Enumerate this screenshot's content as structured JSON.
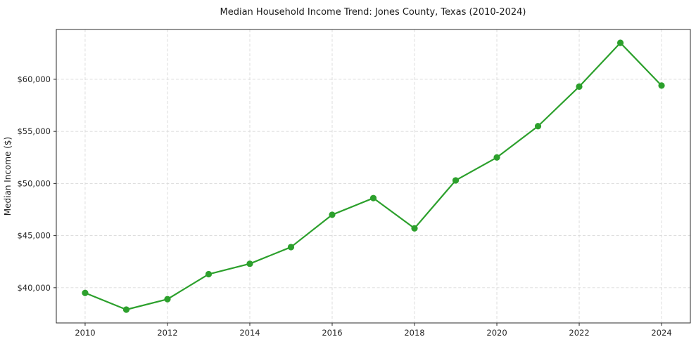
{
  "chart_data": {
    "type": "line",
    "title": "Median Household Income Trend: Jones County, Texas (2010-2024)",
    "xlabel": "",
    "ylabel": "Median Income ($)",
    "x": [
      2010,
      2011,
      2012,
      2013,
      2014,
      2015,
      2016,
      2017,
      2018,
      2019,
      2020,
      2021,
      2022,
      2023,
      2024
    ],
    "values": [
      39500,
      37900,
      38900,
      41300,
      42300,
      43900,
      47000,
      48600,
      45700,
      50300,
      52500,
      55500,
      59300,
      63500,
      59400
    ],
    "xticks": [
      2010,
      2012,
      2014,
      2016,
      2018,
      2020,
      2022,
      2024
    ],
    "xtick_labels": [
      "2010",
      "2012",
      "2014",
      "2016",
      "2018",
      "2020",
      "2022",
      "2024"
    ],
    "yticks": [
      40000,
      45000,
      50000,
      55000,
      60000
    ],
    "ytick_labels": [
      "$40,000",
      "$45,000",
      "$50,000",
      "$55,000",
      "$60,000"
    ],
    "xlim": [
      2009.3,
      2024.7
    ],
    "ylim": [
      36620,
      64780
    ],
    "grid": true,
    "legend": false,
    "line_color": "#2ca02c",
    "marker": "circle",
    "marker_radius": 4.6,
    "line_width": 2.2,
    "grid_color": "#d9d9d9",
    "axis_color": "#2b2b2b",
    "background_color": "#ffffff"
  }
}
